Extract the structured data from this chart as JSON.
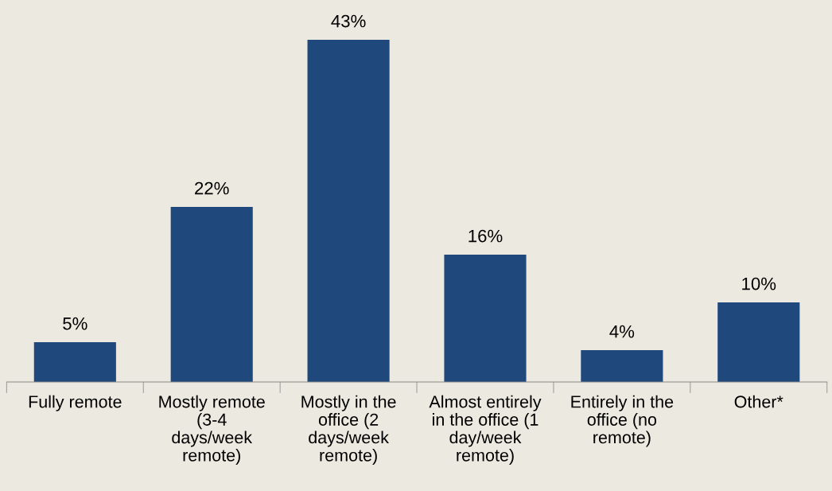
{
  "chart_data": {
    "type": "bar",
    "categories": [
      "Fully remote",
      "Mostly remote\n(3-4\ndays/week\nremote)",
      "Mostly in the\noffice (2\ndays/week\nremote)",
      "Almost entirely\nin the office (1\nday/week\nremote)",
      "Entirely in the\noffice (no\nremote)",
      "Other*"
    ],
    "values": [
      5,
      22,
      43,
      16,
      4,
      10
    ],
    "value_labels": [
      "5%",
      "22%",
      "43%",
      "16%",
      "4%",
      "10%"
    ],
    "color": "#1f497d",
    "grid": false,
    "legend": false
  }
}
